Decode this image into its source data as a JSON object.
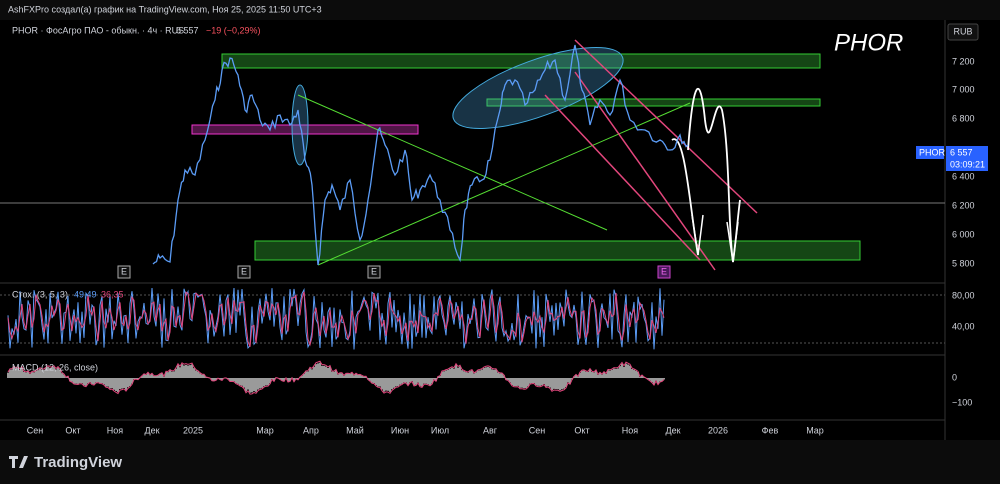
{
  "header": {
    "credit": "AshFXPro создал(а) график на TradingView.com, Ноя 25, 2025 11:50 UTC+3"
  },
  "symbol": {
    "title": "PHOR · ФосАгро ПАО - обыкн. · 4ч · RUS",
    "price": "6 557",
    "change": "−19 (−0,29%)",
    "watermark": "PHOR"
  },
  "price_axis": {
    "currency": "RUB",
    "labels": [
      "7 200",
      "7 000",
      "6 800",
      "6 400",
      "6 200",
      "6 000",
      "5 800"
    ]
  },
  "price_tag": {
    "symbol": "PHOR",
    "price": "6 557",
    "countdown": "03:09:21"
  },
  "stochastic": {
    "title": "Стох. (3, 5, 3)",
    "k": "49,49",
    "d": "36,35",
    "axis": [
      "80,00",
      "40,00"
    ]
  },
  "macd": {
    "title": "MACD (12, 26, close)",
    "axis": [
      "0",
      "−100"
    ]
  },
  "events": [
    "E",
    "E",
    "E",
    "E"
  ],
  "time_axis": [
    "Сен",
    "Окт",
    "Ноя",
    "Дек",
    "2025",
    "Мар",
    "Апр",
    "Май",
    "Июн",
    "Июл",
    "Авг",
    "Сен",
    "Окт",
    "Ноя",
    "Дек",
    "2026",
    "Фев",
    "Мар"
  ],
  "footer": {
    "brand": "TradingView"
  }
}
